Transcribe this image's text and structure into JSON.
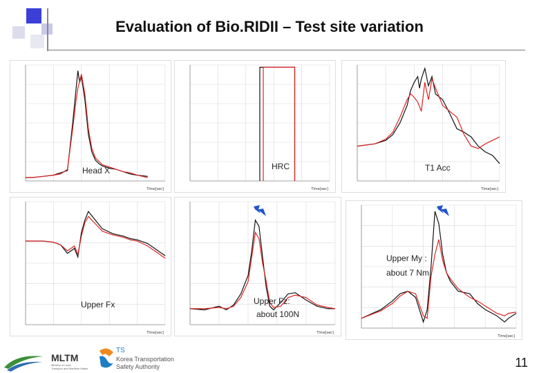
{
  "title": "Evaluation of Bio.RIDII – Test site variation",
  "page_number": "11",
  "logos": {
    "mltm": {
      "name": "MLTM",
      "subtitle_1": "Ministry of Land,",
      "subtitle_2": "Transport and Maritime Affairs"
    },
    "ts": {
      "name": "TS",
      "subtitle_1": "Korea Transportation",
      "subtitle_2": "Safety Authority"
    }
  },
  "colors": {
    "test_a": "#111111",
    "test_b": "#dd2222",
    "grid": "#d8d8d8",
    "bolt": "#2255cc"
  },
  "chart_data": [
    {
      "id": "head-x",
      "type": "line",
      "label": "Head X",
      "xlabel": "Time[sec]",
      "xlim": [
        0.0,
        0.4
      ],
      "ylim": [
        0,
        1
      ],
      "series": [
        {
          "name": "test_a",
          "x": [
            0,
            0.02,
            0.05,
            0.08,
            0.1,
            0.12,
            0.135,
            0.145,
            0.15,
            0.155,
            0.16,
            0.17,
            0.18,
            0.19,
            0.2,
            0.21,
            0.22,
            0.24,
            0.26,
            0.28,
            0.3,
            0.32,
            0.35
          ],
          "y": [
            0.03,
            0.03,
            0.04,
            0.05,
            0.07,
            0.09,
            0.5,
            0.8,
            0.95,
            0.85,
            0.9,
            0.7,
            0.4,
            0.25,
            0.18,
            0.15,
            0.13,
            0.11,
            0.1,
            0.08,
            0.06,
            0.05,
            0.04
          ]
        },
        {
          "name": "test_b",
          "x": [
            0,
            0.02,
            0.05,
            0.08,
            0.1,
            0.12,
            0.135,
            0.145,
            0.15,
            0.16,
            0.17,
            0.18,
            0.19,
            0.2,
            0.21,
            0.22,
            0.24,
            0.26,
            0.28,
            0.3,
            0.32,
            0.35
          ],
          "y": [
            0.03,
            0.03,
            0.04,
            0.05,
            0.06,
            0.1,
            0.45,
            0.7,
            0.8,
            0.92,
            0.75,
            0.45,
            0.28,
            0.2,
            0.17,
            0.14,
            0.12,
            0.1,
            0.08,
            0.07,
            0.05,
            0.03
          ]
        }
      ]
    },
    {
      "id": "hrc",
      "type": "line",
      "label": "HRC",
      "xlabel": "Time[sec]",
      "xlim": [
        0.0,
        0.4
      ],
      "ylim": [
        0,
        1
      ],
      "series": [
        {
          "name": "test_a",
          "x": [
            0.2,
            0.2,
            0.3,
            0.3
          ],
          "y": [
            0,
            0.98,
            0.98,
            0
          ]
        },
        {
          "name": "test_b",
          "x": [
            0.21,
            0.21,
            0.3,
            0.3
          ],
          "y": [
            0,
            0.98,
            0.98,
            0
          ]
        }
      ]
    },
    {
      "id": "t1-acc",
      "type": "line",
      "label": "T1 Acc",
      "xlabel": "Time[sec]",
      "xlim": [
        0.0,
        0.4
      ],
      "ylim": [
        0,
        1
      ],
      "series": [
        {
          "name": "test_a",
          "x": [
            0,
            0.05,
            0.08,
            0.1,
            0.12,
            0.14,
            0.15,
            0.16,
            0.17,
            0.175,
            0.18,
            0.19,
            0.2,
            0.21,
            0.22,
            0.24,
            0.26,
            0.28,
            0.3,
            0.32,
            0.34,
            0.36,
            0.38,
            0.4
          ],
          "y": [
            0.3,
            0.32,
            0.35,
            0.4,
            0.5,
            0.65,
            0.78,
            0.85,
            0.9,
            0.8,
            0.88,
            0.97,
            0.82,
            0.9,
            0.75,
            0.7,
            0.58,
            0.45,
            0.42,
            0.38,
            0.3,
            0.25,
            0.22,
            0.15
          ]
        },
        {
          "name": "test_b",
          "x": [
            0,
            0.05,
            0.08,
            0.1,
            0.12,
            0.14,
            0.15,
            0.16,
            0.17,
            0.18,
            0.19,
            0.2,
            0.21,
            0.22,
            0.24,
            0.26,
            0.28,
            0.3,
            0.32,
            0.34,
            0.36,
            0.38,
            0.4
          ],
          "y": [
            0.3,
            0.32,
            0.36,
            0.42,
            0.55,
            0.7,
            0.75,
            0.72,
            0.68,
            0.6,
            0.85,
            0.7,
            0.88,
            0.8,
            0.65,
            0.6,
            0.55,
            0.4,
            0.3,
            0.28,
            0.32,
            0.35,
            0.38
          ]
        }
      ]
    },
    {
      "id": "upper-fx",
      "type": "line",
      "label": "Upper Fx",
      "xlabel": "Time[sec]",
      "xlim": [
        0.0,
        0.4
      ],
      "ylim": [
        0,
        1
      ],
      "series": [
        {
          "name": "test_a",
          "x": [
            0,
            0.05,
            0.08,
            0.1,
            0.12,
            0.14,
            0.15,
            0.16,
            0.17,
            0.18,
            0.2,
            0.22,
            0.25,
            0.28,
            0.3,
            0.32,
            0.35,
            0.38,
            0.4
          ],
          "y": [
            0.68,
            0.68,
            0.67,
            0.65,
            0.58,
            0.62,
            0.55,
            0.75,
            0.85,
            0.92,
            0.85,
            0.78,
            0.74,
            0.72,
            0.7,
            0.69,
            0.66,
            0.6,
            0.56
          ]
        },
        {
          "name": "test_b",
          "x": [
            0,
            0.05,
            0.08,
            0.1,
            0.12,
            0.14,
            0.15,
            0.16,
            0.17,
            0.18,
            0.2,
            0.22,
            0.25,
            0.28,
            0.3,
            0.32,
            0.35,
            0.38,
            0.4
          ],
          "y": [
            0.68,
            0.68,
            0.67,
            0.65,
            0.6,
            0.64,
            0.57,
            0.72,
            0.83,
            0.88,
            0.82,
            0.76,
            0.73,
            0.71,
            0.69,
            0.68,
            0.64,
            0.58,
            0.54
          ]
        }
      ]
    },
    {
      "id": "upper-fz",
      "type": "line",
      "label": "Upper Fz:",
      "annotation": "about 100N",
      "xlabel": "Time[sec]",
      "xlim": [
        0.0,
        0.4
      ],
      "ylim": [
        0,
        1
      ],
      "series": [
        {
          "name": "test_a",
          "x": [
            0,
            0.04,
            0.08,
            0.1,
            0.12,
            0.14,
            0.16,
            0.17,
            0.18,
            0.19,
            0.2,
            0.21,
            0.22,
            0.23,
            0.25,
            0.27,
            0.29,
            0.32,
            0.35,
            0.38,
            0.4
          ],
          "y": [
            0.13,
            0.12,
            0.15,
            0.12,
            0.16,
            0.25,
            0.4,
            0.6,
            0.85,
            0.8,
            0.55,
            0.3,
            0.15,
            0.12,
            0.18,
            0.25,
            0.26,
            0.2,
            0.15,
            0.13,
            0.13
          ]
        },
        {
          "name": "test_b",
          "x": [
            0,
            0.04,
            0.08,
            0.1,
            0.12,
            0.14,
            0.16,
            0.17,
            0.18,
            0.19,
            0.2,
            0.21,
            0.22,
            0.23,
            0.25,
            0.27,
            0.29,
            0.32,
            0.35,
            0.38,
            0.4
          ],
          "y": [
            0.13,
            0.13,
            0.14,
            0.13,
            0.15,
            0.22,
            0.35,
            0.55,
            0.75,
            0.7,
            0.5,
            0.35,
            0.18,
            0.14,
            0.15,
            0.22,
            0.24,
            0.22,
            0.16,
            0.14,
            0.13
          ]
        }
      ]
    },
    {
      "id": "upper-my",
      "type": "line",
      "label": "Upper My :",
      "annotation": "about 7 Nm",
      "xlabel": "Time[sec]",
      "xlim": [
        0.0,
        0.4
      ],
      "ylim": [
        0,
        1
      ],
      "series": [
        {
          "name": "test_a",
          "x": [
            0,
            0.05,
            0.08,
            0.1,
            0.12,
            0.14,
            0.16,
            0.17,
            0.18,
            0.19,
            0.2,
            0.21,
            0.22,
            0.23,
            0.25,
            0.28,
            0.3,
            0.32,
            0.35,
            0.37,
            0.38,
            0.4
          ],
          "y": [
            0.08,
            0.15,
            0.22,
            0.28,
            0.3,
            0.25,
            0.05,
            0.15,
            0.5,
            0.95,
            0.85,
            0.6,
            0.45,
            0.38,
            0.3,
            0.28,
            0.2,
            0.15,
            0.1,
            0.05,
            0.08,
            0.12
          ]
        },
        {
          "name": "test_b",
          "x": [
            0,
            0.05,
            0.08,
            0.1,
            0.12,
            0.14,
            0.16,
            0.17,
            0.18,
            0.19,
            0.2,
            0.21,
            0.22,
            0.23,
            0.25,
            0.28,
            0.3,
            0.32,
            0.35,
            0.37,
            0.38,
            0.4
          ],
          "y": [
            0.08,
            0.14,
            0.2,
            0.26,
            0.3,
            0.28,
            0.1,
            0.08,
            0.42,
            0.6,
            0.72,
            0.55,
            0.45,
            0.4,
            0.32,
            0.25,
            0.22,
            0.18,
            0.12,
            0.1,
            0.12,
            0.13
          ]
        }
      ]
    }
  ]
}
